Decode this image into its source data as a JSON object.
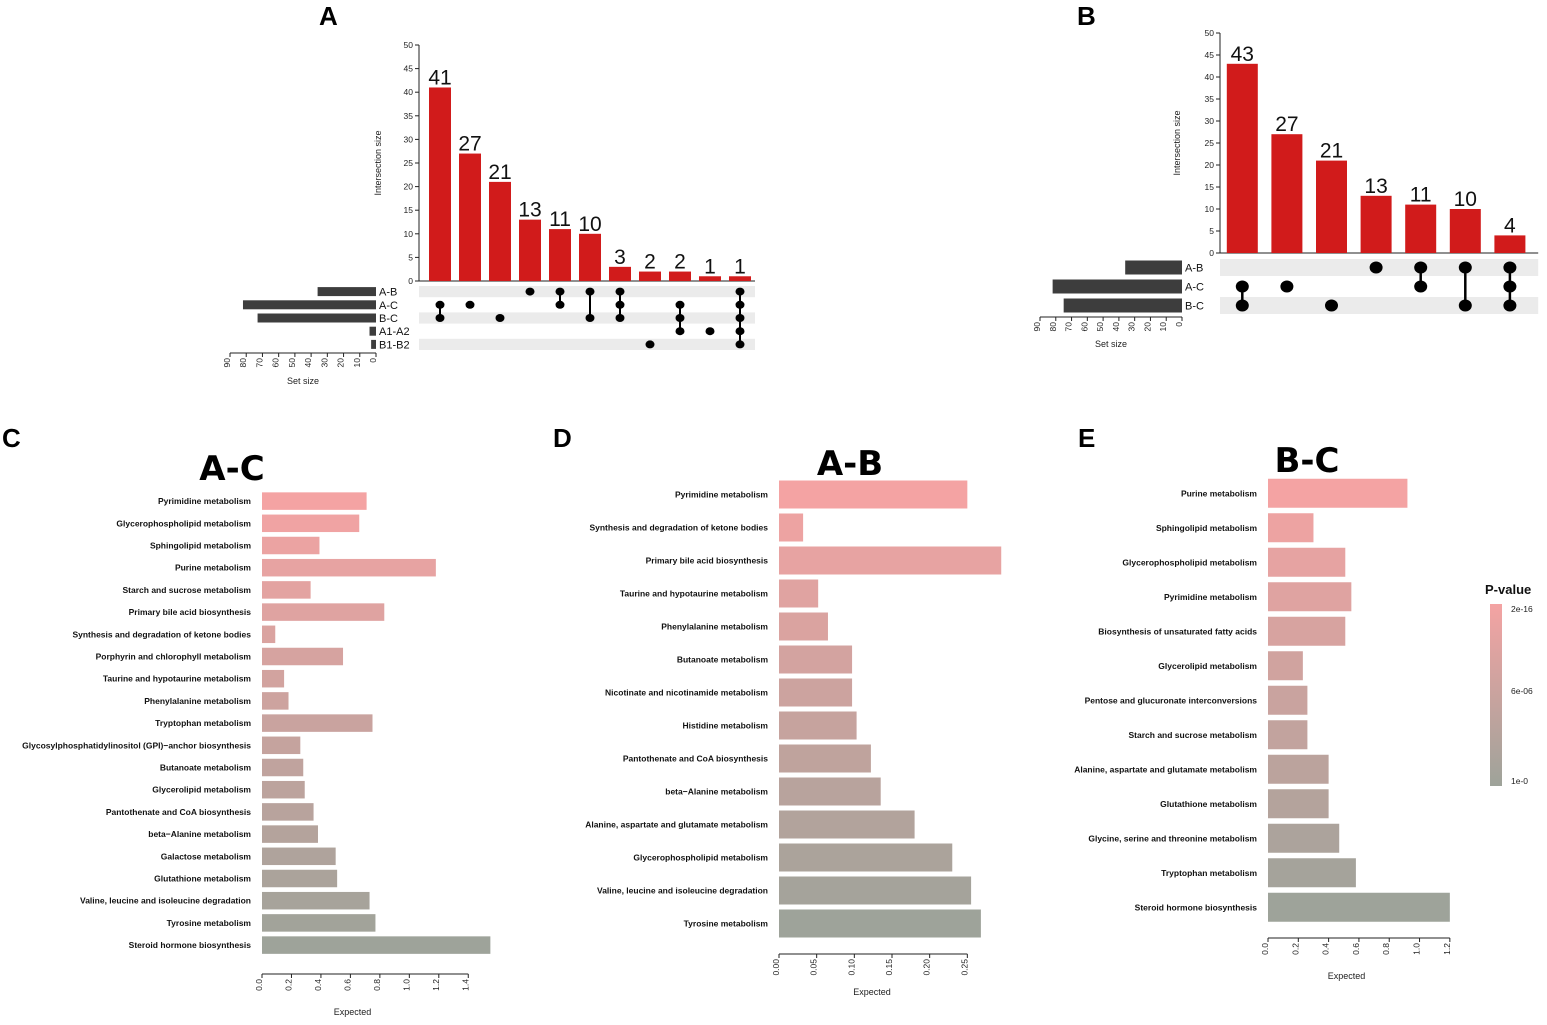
{
  "panels": {
    "A": "A",
    "B": "B",
    "C": "C",
    "D": "D",
    "E": "E"
  },
  "colors": {
    "bar_red": "#d11b1b",
    "set_bar": "#3d3d3d",
    "dot": "#000000",
    "band": "#ebebeb",
    "grad_high": "#f4a3a3",
    "grad_low": "#9ea39a"
  },
  "chart_data": [
    {
      "type": "upset",
      "panel": "A",
      "ylabel": "Intersection size",
      "xlabel_sets": "Set size",
      "ylim": [
        0,
        50
      ],
      "yticks": [
        0,
        5,
        10,
        15,
        20,
        25,
        30,
        35,
        40,
        45,
        50
      ],
      "set_ticks": [
        90,
        80,
        70,
        60,
        50,
        40,
        30,
        20,
        10,
        0
      ],
      "set_xlim": [
        0,
        90
      ],
      "sets": [
        {
          "name": "A-B",
          "size": 36
        },
        {
          "name": "A-C",
          "size": 82
        },
        {
          "name": "B-C",
          "size": 73
        },
        {
          "name": "A1-A2",
          "size": 4
        },
        {
          "name": "B1-B2",
          "size": 3
        }
      ],
      "intersections": [
        {
          "value": 41,
          "label": "41",
          "members": [
            1,
            2
          ]
        },
        {
          "value": 27,
          "label": "27",
          "members": [
            1
          ]
        },
        {
          "value": 21,
          "label": "21",
          "members": [
            2
          ]
        },
        {
          "value": 13,
          "label": "13",
          "members": [
            0
          ]
        },
        {
          "value": 11,
          "label": "11",
          "members": [
            0,
            1
          ]
        },
        {
          "value": 10,
          "label": "10",
          "members": [
            0,
            2
          ]
        },
        {
          "value": 3,
          "label": "3",
          "members": [
            0,
            1,
            2
          ]
        },
        {
          "value": 2,
          "label": "2",
          "members": [
            4
          ]
        },
        {
          "value": 2,
          "label": "2",
          "members": [
            1,
            2,
            3
          ]
        },
        {
          "value": 1,
          "label": "1",
          "members": [
            3
          ]
        },
        {
          "value": 1,
          "label": "1",
          "members": [
            0,
            1,
            2,
            3,
            4
          ]
        }
      ]
    },
    {
      "type": "upset",
      "panel": "B",
      "ylabel": "Intersection size",
      "xlabel_sets": "Set size",
      "ylim": [
        0,
        50
      ],
      "yticks": [
        0,
        5,
        10,
        15,
        20,
        25,
        30,
        35,
        40,
        45,
        50
      ],
      "set_ticks": [
        90,
        80,
        70,
        60,
        50,
        40,
        30,
        20,
        10,
        0
      ],
      "set_xlim": [
        0,
        90
      ],
      "sets": [
        {
          "name": "A-B",
          "size": 36
        },
        {
          "name": "A-C",
          "size": 82
        },
        {
          "name": "B-C",
          "size": 75
        }
      ],
      "intersections": [
        {
          "value": 43,
          "label": "43",
          "members": [
            1,
            2
          ]
        },
        {
          "value": 27,
          "label": "27",
          "members": [
            1
          ]
        },
        {
          "value": 21,
          "label": "21",
          "members": [
            2
          ]
        },
        {
          "value": 13,
          "label": "13",
          "members": [
            0
          ]
        },
        {
          "value": 11,
          "label": "11",
          "members": [
            0,
            1
          ]
        },
        {
          "value": 10,
          "label": "10",
          "members": [
            0,
            2
          ]
        },
        {
          "value": 4,
          "label": "4",
          "members": [
            0,
            1,
            2
          ]
        }
      ]
    },
    {
      "type": "bar",
      "orientation": "horizontal",
      "panel": "C",
      "title": "A-C",
      "xlabel": "Expected",
      "xlim": [
        0,
        1.5
      ],
      "xticks": [
        0,
        0.2,
        0.4,
        0.6,
        0.8,
        1.0,
        1.2,
        1.4
      ],
      "xtick_labels": [
        "0.0",
        "0.2",
        "0.4",
        "0.6",
        "0.8",
        "1.0",
        "1.2",
        "1.4"
      ],
      "categories": [
        "Pyrimidine metabolism",
        "Glycerophospholipid metabolism",
        "Sphingolipid metabolism",
        "Purine metabolism",
        "Starch and sucrose metabolism",
        "Primary bile acid biosynthesis",
        "Synthesis and degradation of ketone bodies",
        "Porphyrin and chlorophyll metabolism",
        "Taurine and hypotaurine metabolism",
        "Phenylalanine metabolism",
        "Tryptophan metabolism",
        "Glycosylphosphatidylinositol (GPI)−anchor biosynthesis",
        "Butanoate metabolism",
        "Glycerolipid metabolism",
        "Pantothenate and CoA biosynthesis",
        "beta−Alanine metabolism",
        "Galactose metabolism",
        "Glutathione metabolism",
        "Valine, leucine and isoleucine degradation",
        "Tyrosine metabolism",
        "Steroid hormone biosynthesis"
      ],
      "values": [
        0.71,
        0.66,
        0.39,
        1.18,
        0.33,
        0.83,
        0.09,
        0.55,
        0.15,
        0.18,
        0.75,
        0.26,
        0.28,
        0.29,
        0.35,
        0.38,
        0.5,
        0.51,
        0.73,
        0.77,
        1.55
      ]
    },
    {
      "type": "bar",
      "orientation": "horizontal",
      "panel": "D",
      "title": "A-B",
      "xlabel": "Expected",
      "xlim": [
        0,
        0.3
      ],
      "xticks": [
        0,
        0.05,
        0.1,
        0.15,
        0.2,
        0.25
      ],
      "xtick_labels": [
        "0.00",
        "0.05",
        "0.10",
        "0.15",
        "0.20",
        "0.25"
      ],
      "categories": [
        "Pyrimidine metabolism",
        "Synthesis and degradation of ketone bodies",
        "Primary bile acid biosynthesis",
        "Taurine and hypotaurine metabolism",
        "Phenylalanine metabolism",
        "Butanoate metabolism",
        "Nicotinate and nicotinamide metabolism",
        "Histidine metabolism",
        "Pantothenate and CoA biosynthesis",
        "beta−Alanine metabolism",
        "Alanine, aspartate and glutamate metabolism",
        "Glycerophospholipid metabolism",
        "Valine, leucine and isoleucine degradation",
        "Tyrosine metabolism"
      ],
      "values": [
        0.25,
        0.032,
        0.295,
        0.052,
        0.065,
        0.097,
        0.097,
        0.103,
        0.122,
        0.135,
        0.18,
        0.23,
        0.255,
        0.268
      ]
    },
    {
      "type": "bar",
      "orientation": "horizontal",
      "panel": "E",
      "title": "B-C",
      "xlabel": "Expected",
      "xlim": [
        0,
        1.3
      ],
      "xticks": [
        0,
        0.2,
        0.4,
        0.6,
        0.8,
        1.0,
        1.2
      ],
      "xtick_labels": [
        "0.0",
        "0.2",
        "0.4",
        "0.6",
        "0.8",
        "1.0",
        "1.2"
      ],
      "categories": [
        "Purine metabolism",
        "Sphingolipid metabolism",
        "Glycerophospholipid metabolism",
        "Pyrimidine metabolism",
        "Biosynthesis of unsaturated fatty acids",
        "Glycerolipid metabolism",
        "Pentose and glucuronate interconversions",
        "Starch and sucrose metabolism",
        "Alanine, aspartate and glutamate metabolism",
        "Glutathione metabolism",
        "Glycine, serine and threonine metabolism",
        "Tryptophan metabolism",
        "Steroid hormone biosynthesis"
      ],
      "values": [
        0.92,
        0.3,
        0.51,
        0.55,
        0.51,
        0.23,
        0.26,
        0.26,
        0.4,
        0.4,
        0.47,
        0.58,
        1.2
      ]
    }
  ],
  "legend": {
    "title": "P-value",
    "ticks": [
      "2e-16",
      "6e-06",
      "1e-0"
    ]
  }
}
